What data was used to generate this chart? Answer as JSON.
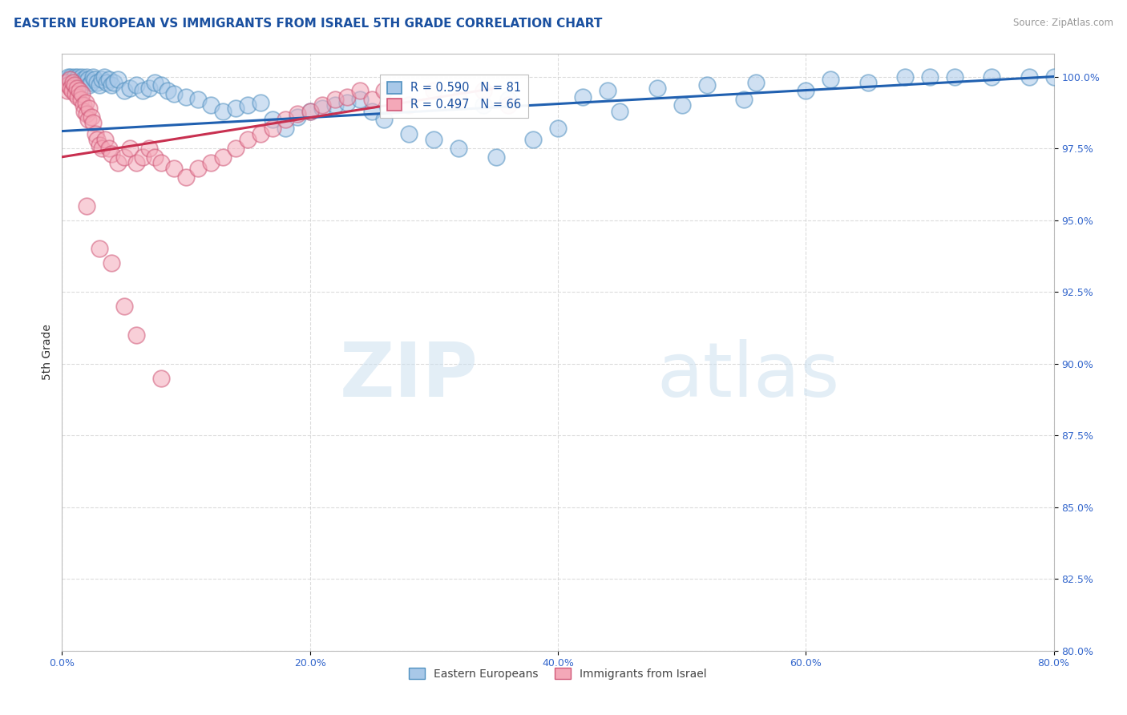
{
  "title": "EASTERN EUROPEAN VS IMMIGRANTS FROM ISRAEL 5TH GRADE CORRELATION CHART",
  "source_text": "Source: ZipAtlas.com",
  "ylabel": "5th Grade",
  "xlim": [
    0.0,
    80.0
  ],
  "ylim": [
    80.0,
    100.8
  ],
  "xticks": [
    0.0,
    20.0,
    40.0,
    60.0,
    80.0
  ],
  "yticks": [
    80.0,
    82.5,
    85.0,
    87.5,
    90.0,
    92.5,
    95.0,
    97.5,
    100.0
  ],
  "watermark_zip": "ZIP",
  "watermark_atlas": "atlas",
  "blue_color": "#a8c8e8",
  "blue_edge": "#5090c0",
  "pink_color": "#f4a8b8",
  "pink_edge": "#d05878",
  "blue_line_color": "#2060b0",
  "pink_line_color": "#c83050",
  "blue_trend_x": [
    0.0,
    80.0
  ],
  "blue_trend_y": [
    98.1,
    100.0
  ],
  "pink_trend_x": [
    0.0,
    35.0
  ],
  "pink_trend_y": [
    97.2,
    99.6
  ],
  "legend_R_blue": "R = 0.590",
  "legend_N_blue": "N = 81",
  "legend_R_pink": "R = 0.497",
  "legend_N_pink": "N = 66",
  "background_color": "#ffffff",
  "grid_color": "#cccccc",
  "title_fontsize": 11,
  "tick_fontsize": 9,
  "tick_color": "#3366cc",
  "ylabel_color": "#333333",
  "blue_scatter_x": [
    0.4,
    0.5,
    0.6,
    0.7,
    0.8,
    0.9,
    1.0,
    1.1,
    1.2,
    1.3,
    1.4,
    1.5,
    1.6,
    1.7,
    1.8,
    2.0,
    2.1,
    2.2,
    2.4,
    2.5,
    2.6,
    2.8,
    3.0,
    3.2,
    3.4,
    3.6,
    3.8,
    4.0,
    4.2,
    4.5,
    5.0,
    5.5,
    6.0,
    6.5,
    7.0,
    7.5,
    8.0,
    8.5,
    9.0,
    10.0,
    11.0,
    12.0,
    13.0,
    14.0,
    15.0,
    16.0,
    17.0,
    18.0,
    19.0,
    20.0,
    21.0,
    22.0,
    23.0,
    24.0,
    25.0,
    26.0,
    28.0,
    30.0,
    32.0,
    35.0,
    38.0,
    40.0,
    45.0,
    50.0,
    55.0,
    60.0,
    65.0,
    68.0,
    72.0,
    75.0,
    78.0,
    80.0,
    34.0,
    36.0,
    42.0,
    44.0,
    48.0,
    52.0,
    56.0,
    62.0,
    70.0
  ],
  "blue_scatter_y": [
    99.8,
    100.0,
    99.9,
    100.0,
    99.8,
    99.9,
    100.0,
    99.8,
    99.9,
    100.0,
    99.7,
    99.8,
    100.0,
    99.9,
    99.8,
    100.0,
    99.9,
    99.7,
    99.8,
    100.0,
    99.9,
    99.8,
    99.7,
    99.9,
    100.0,
    99.8,
    99.9,
    99.7,
    99.8,
    99.9,
    99.5,
    99.6,
    99.7,
    99.5,
    99.6,
    99.8,
    99.7,
    99.5,
    99.4,
    99.3,
    99.2,
    99.0,
    98.8,
    98.9,
    99.0,
    99.1,
    98.5,
    98.2,
    98.6,
    98.8,
    98.9,
    99.0,
    99.1,
    99.2,
    98.8,
    98.5,
    98.0,
    97.8,
    97.5,
    97.2,
    97.8,
    98.2,
    98.8,
    99.0,
    99.2,
    99.5,
    99.8,
    100.0,
    100.0,
    100.0,
    100.0,
    100.0,
    99.0,
    99.2,
    99.3,
    99.5,
    99.6,
    99.7,
    99.8,
    99.9,
    100.0
  ],
  "pink_scatter_x": [
    0.3,
    0.4,
    0.5,
    0.6,
    0.7,
    0.8,
    0.9,
    1.0,
    1.1,
    1.2,
    1.3,
    1.4,
    1.5,
    1.6,
    1.7,
    1.8,
    1.9,
    2.0,
    2.1,
    2.2,
    2.4,
    2.5,
    2.7,
    2.8,
    3.0,
    3.2,
    3.5,
    3.8,
    4.0,
    4.5,
    5.0,
    5.5,
    6.0,
    6.5,
    7.0,
    7.5,
    8.0,
    9.0,
    10.0,
    11.0,
    12.0,
    13.0,
    14.0,
    15.0,
    16.0,
    17.0,
    18.0,
    19.0,
    20.0,
    21.0,
    22.0,
    23.0,
    24.0,
    25.0,
    26.0,
    28.0,
    30.0,
    32.0,
    34.0,
    36.0,
    2.0,
    3.0,
    4.0,
    5.0,
    6.0,
    8.0
  ],
  "pink_scatter_y": [
    99.8,
    99.5,
    99.7,
    99.9,
    99.6,
    99.5,
    99.8,
    99.7,
    99.4,
    99.6,
    99.3,
    99.5,
    99.2,
    99.4,
    99.0,
    98.8,
    99.1,
    98.7,
    98.5,
    98.9,
    98.6,
    98.4,
    98.0,
    97.8,
    97.6,
    97.5,
    97.8,
    97.5,
    97.3,
    97.0,
    97.2,
    97.5,
    97.0,
    97.2,
    97.5,
    97.2,
    97.0,
    96.8,
    96.5,
    96.8,
    97.0,
    97.2,
    97.5,
    97.8,
    98.0,
    98.2,
    98.5,
    98.7,
    98.8,
    99.0,
    99.2,
    99.3,
    99.5,
    99.2,
    99.5,
    99.0,
    99.5,
    99.2,
    99.5,
    99.0,
    95.5,
    94.0,
    93.5,
    92.0,
    91.0,
    89.5
  ]
}
